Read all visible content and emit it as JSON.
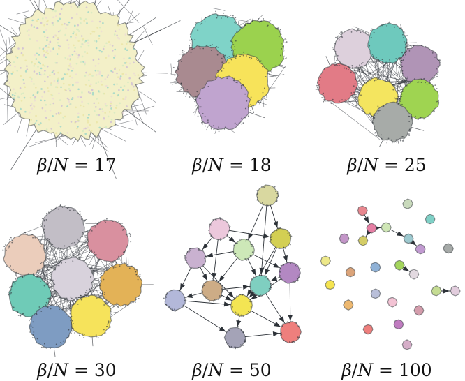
{
  "figure": {
    "panels": [
      {
        "id": "p17",
        "value": "17",
        "clusters": [
          {
            "color": "#f3f0c8",
            "size": 1.25,
            "overlay": [
              "#e8e2a0",
              "#c9b6d6",
              "#cfe8c0",
              "#ead7d7",
              "#8fd1c8"
            ]
          }
        ]
      },
      {
        "id": "p18",
        "value": "18",
        "clusters": [
          {
            "color": "#7fd3c8"
          },
          {
            "color": "#9bd24e"
          },
          {
            "color": "#a98a90"
          },
          {
            "color": "#f7e35a"
          },
          {
            "color": "#c0a4cf"
          }
        ]
      },
      {
        "id": "p25",
        "value": "25",
        "clusters": [
          {
            "color": "#ddd0dc"
          },
          {
            "color": "#6ec9bd"
          },
          {
            "color": "#b094b6"
          },
          {
            "color": "#e27b86"
          },
          {
            "color": "#f4e55f"
          },
          {
            "color": "#9fd451"
          },
          {
            "color": "#a7aba8"
          }
        ]
      },
      {
        "id": "p30",
        "value": "30",
        "clusters": [
          {
            "color": "#c2bec6"
          },
          {
            "color": "#d9909f"
          },
          {
            "color": "#ebcdbb"
          },
          {
            "color": "#d8d2dc"
          },
          {
            "color": "#e3b257"
          },
          {
            "color": "#6fcbb7"
          },
          {
            "color": "#f6e35b"
          },
          {
            "color": "#7e9cc2"
          }
        ]
      },
      {
        "id": "p50",
        "value": "50",
        "clusters": [
          {
            "color": "#d9d8a0"
          },
          {
            "color": "#ecc8dc"
          },
          {
            "color": "#d3cf53"
          },
          {
            "color": "#cde8b8"
          },
          {
            "color": "#c9b1d0"
          },
          {
            "color": "#b388c2"
          },
          {
            "color": "#cdac86"
          },
          {
            "color": "#7fcfc0"
          },
          {
            "color": "#b3b8d9"
          },
          {
            "color": "#f3e553"
          },
          {
            "color": "#a4a3b7"
          },
          {
            "color": "#ee7f7d"
          }
        ]
      },
      {
        "id": "p100",
        "value": "100",
        "clusters": [
          {
            "color": "#e8878f"
          },
          {
            "color": "#c9dabc"
          },
          {
            "color": "#e67fa4"
          },
          {
            "color": "#cfe6b6"
          },
          {
            "color": "#7fd0c6"
          },
          {
            "color": "#c396c8"
          },
          {
            "color": "#d4cd66"
          },
          {
            "color": "#9dc9cf"
          },
          {
            "color": "#c19ad0"
          },
          {
            "color": "#a6aaa8"
          },
          {
            "color": "#ede889"
          },
          {
            "color": "#dba47a"
          },
          {
            "color": "#8fb1d6"
          },
          {
            "color": "#a4d55d"
          },
          {
            "color": "#e2d9e0"
          },
          {
            "color": "#f5e451"
          },
          {
            "color": "#c5dc93"
          },
          {
            "color": "#e2cddd"
          },
          {
            "color": "#b9bfd9"
          },
          {
            "color": "#f3c3d4"
          },
          {
            "color": "#edb870"
          },
          {
            "color": "#d49dac"
          },
          {
            "color": "#ee7f7d"
          },
          {
            "color": "#c07cc0"
          },
          {
            "color": "#d5aec8"
          }
        ]
      }
    ],
    "label_symbol": "β",
    "label_divisor": "N",
    "label_equals": " = ",
    "edge_color": "#2d3238"
  }
}
